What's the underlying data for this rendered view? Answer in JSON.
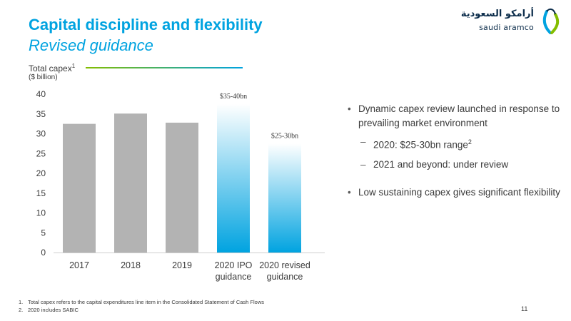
{
  "header": {
    "title": "Capital discipline and flexibility",
    "subtitle": "Revised guidance"
  },
  "logo": {
    "arabic": "أرامكو السعودية",
    "english": "saudi aramco"
  },
  "chart_header": {
    "label": "Total capex",
    "label_sup": "1",
    "unit": "($ billion)"
  },
  "chart_data": {
    "type": "bar",
    "categories": [
      "2017",
      "2018",
      "2019",
      "2020 IPO guidance",
      "2020 revised guidance"
    ],
    "category_lines": [
      [
        "2017"
      ],
      [
        "2018"
      ],
      [
        "2019"
      ],
      [
        "2020 IPO",
        "guidance"
      ],
      [
        "2020 revised",
        "guidance"
      ]
    ],
    "values": [
      32.5,
      35.1,
      32.8,
      37.5,
      27.5
    ],
    "ranges": [
      null,
      null,
      null,
      [
        35,
        40
      ],
      [
        25,
        30
      ]
    ],
    "data_labels": [
      "",
      "",
      "",
      "$35-40bn",
      "$25-30bn"
    ],
    "styles": [
      "actual",
      "actual",
      "actual",
      "guidance",
      "guidance"
    ],
    "ylim": [
      0,
      40
    ],
    "yticks": [
      0,
      5,
      10,
      15,
      20,
      25,
      30,
      35,
      40
    ],
    "colors": {
      "actual": "#b3b3b3",
      "guidance_bottom": "#00a3e0",
      "guidance_top": "#ffffff"
    },
    "title": "",
    "xlabel": "",
    "ylabel": ""
  },
  "bullets": {
    "b1": "Dynamic capex review launched in response to prevailing market environment",
    "s1": "2020: $25-30bn range",
    "s1_sup": "2",
    "s2": "2021 and beyond: under review",
    "b2": "Low sustaining capex gives significant flexibility"
  },
  "footnotes": [
    {
      "num": "1.",
      "text": "Total capex refers to the capital expenditures line item in the Consolidated Statement of Cash Flows"
    },
    {
      "num": "2.",
      "text": "2020 includes SABIC"
    }
  ],
  "page_number": "11"
}
